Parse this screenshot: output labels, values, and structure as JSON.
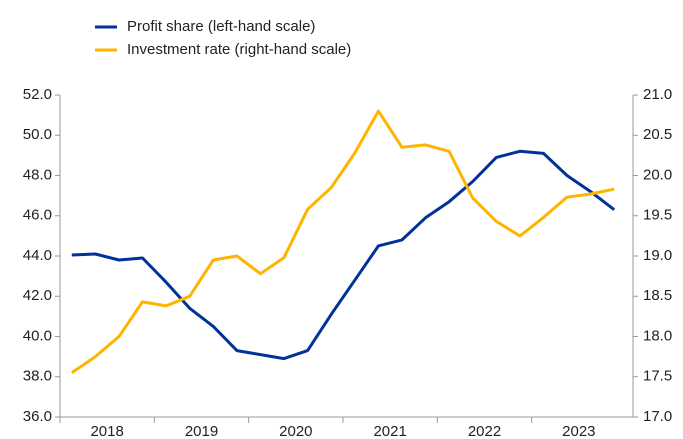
{
  "chart_data": {
    "type": "line",
    "categories": [
      "2018",
      null,
      null,
      null,
      "2019",
      null,
      null,
      null,
      "2020",
      null,
      null,
      null,
      "2021",
      null,
      null,
      null,
      "2022",
      null,
      null,
      null,
      "2023",
      null,
      null,
      null
    ],
    "series": [
      {
        "name": "Profit share (left-hand scale)",
        "color": "#003299",
        "values": [
          44.05,
          44.1,
          43.8,
          43.9,
          42.7,
          41.4,
          40.5,
          39.3,
          39.1,
          38.9,
          39.3,
          41.1,
          42.8,
          44.5,
          44.8,
          45.9,
          46.7,
          47.7,
          48.9,
          49.2,
          49.1,
          48.0,
          47.2,
          46.3
        ]
      },
      {
        "name": "Investment rate (right-hand scale)",
        "color": "#ffb400",
        "axis": "y2",
        "values": [
          17.55,
          17.75,
          18.0,
          18.43,
          18.38,
          18.5,
          18.95,
          19.0,
          18.78,
          18.98,
          19.58,
          19.85,
          20.28,
          20.8,
          20.35,
          20.38,
          20.3,
          19.72,
          19.43,
          19.25,
          19.48,
          19.73,
          19.77,
          19.83
        ]
      }
    ],
    "ylim": [
      36,
      52
    ],
    "yticks": [
      {
        "value": 36,
        "label": "36.0"
      },
      {
        "value": 38,
        "label": "38.0"
      },
      {
        "value": 40,
        "label": "40.0"
      },
      {
        "value": 42,
        "label": "42.0"
      },
      {
        "value": 44,
        "label": "44.0"
      },
      {
        "value": 46,
        "label": "46.0"
      },
      {
        "value": 48,
        "label": "48.0"
      },
      {
        "value": 50,
        "label": "50.0"
      },
      {
        "value": 52,
        "label": "52.0"
      }
    ],
    "y2lim": [
      17,
      21
    ],
    "y2ticks": [
      {
        "value": 17,
        "label": "17.0"
      },
      17.5,
      {
        "value": 18,
        "label": "18.0"
      },
      18.5,
      {
        "value": 19,
        "label": "19.0"
      },
      19.5,
      {
        "value": 20,
        "label": "20.0"
      },
      20.5,
      {
        "value": 21,
        "label": "21.0"
      }
    ],
    "legend": "top-left"
  }
}
